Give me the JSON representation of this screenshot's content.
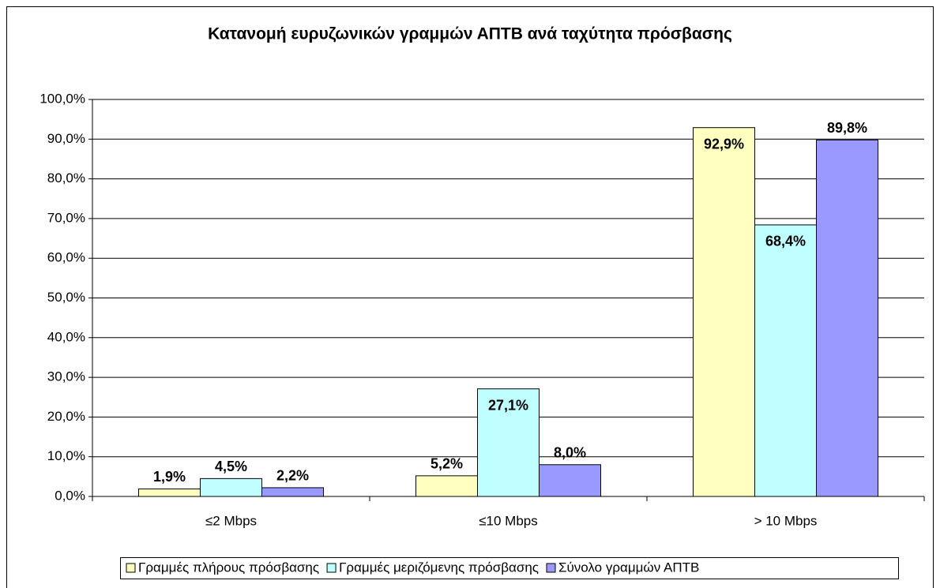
{
  "chart_data": {
    "type": "bar",
    "title": "Κατανομή ευρυζωνικών γραμμών ΑΠΤΒ ανά ταχύτητα πρόσβασης",
    "categories": [
      "≤2 Mbps",
      "≤10 Mbps",
      "> 10 Mbps"
    ],
    "series": [
      {
        "name": "Γραμμές πλήρους πρόσβασης",
        "color": "#ffffc0",
        "values": [
          1.9,
          5.2,
          92.9
        ],
        "value_labels": [
          "1,9%",
          "5,2%",
          "92,9%"
        ]
      },
      {
        "name": "Γραμμές μεριζόμενης πρόσβασης",
        "color": "#c0ffff",
        "values": [
          4.5,
          27.1,
          68.4
        ],
        "value_labels": [
          "4,5%",
          "27,1%",
          "68,4%"
        ]
      },
      {
        "name": "Σύνολο γραμμών ΑΠΤΒ",
        "color": "#9999ff",
        "values": [
          2.2,
          8.0,
          89.8
        ],
        "value_labels": [
          "2,2%",
          "8,0%",
          "89,8%"
        ]
      }
    ],
    "ylim": [
      0,
      100
    ],
    "yticks": [
      {
        "value": 0,
        "label": "0,0%"
      },
      {
        "value": 10,
        "label": "10,0%"
      },
      {
        "value": 20,
        "label": "20,0%"
      },
      {
        "value": 30,
        "label": "30,0%"
      },
      {
        "value": 40,
        "label": "40,0%"
      },
      {
        "value": 50,
        "label": "50,0%"
      },
      {
        "value": 60,
        "label": "60,0%"
      },
      {
        "value": 70,
        "label": "70,0%"
      },
      {
        "value": 80,
        "label": "80,0%"
      },
      {
        "value": 90,
        "label": "90,0%"
      },
      {
        "value": 100,
        "label": "100,0%"
      }
    ],
    "grid": true,
    "legend": "bottom"
  }
}
